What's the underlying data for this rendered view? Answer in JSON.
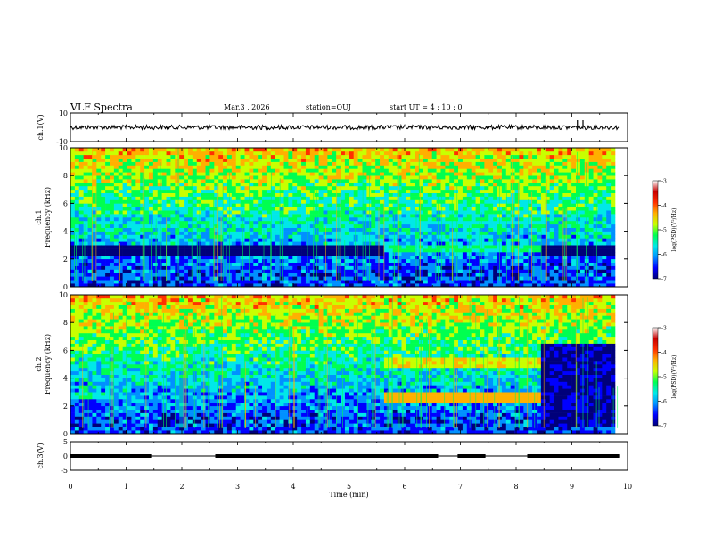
{
  "header": {
    "title": "VLF Spectra",
    "date": "Mar.3 , 2026",
    "station": "station=OUJ",
    "start_ut": "start UT = 4 : 10 : 0"
  },
  "colors": {
    "colormap": [
      "#00007a",
      "#0000ff",
      "#0090ff",
      "#00e8e8",
      "#00ff50",
      "#c8ff00",
      "#ffb000",
      "#ff3000",
      "#c80000",
      "#ffffff"
    ],
    "trace": "#000000",
    "axis": "#000000"
  },
  "chart_data": [
    {
      "type": "line",
      "panel": "ch1-waveform",
      "ylabel": "ch.1(V)",
      "ylim": [
        -10,
        10
      ],
      "yticks": [
        "10",
        "-10"
      ],
      "x": [
        0,
        1,
        2,
        3,
        4,
        5,
        5.15,
        6,
        7,
        8,
        9,
        9.1,
        9.2,
        9.85
      ],
      "y": [
        0,
        0,
        0,
        0,
        0,
        0,
        -2,
        0,
        0,
        0,
        0,
        5,
        5,
        0
      ]
    },
    {
      "type": "heatmap",
      "panel": "ch1-spectrogram",
      "ylabel": "ch.1 Frequency (kHz)",
      "ylim": [
        0,
        10
      ],
      "yticks": [
        "0",
        "2",
        "4",
        "6",
        "8",
        "10"
      ],
      "colorbar_label": "log(PSD)(V²/Hz)",
      "colorbar_ticks": [
        "-3",
        "-4",
        "-5",
        "-6",
        "-7"
      ],
      "zlim": [
        -7,
        -3
      ],
      "bands": [
        {
          "t0": 0,
          "t1": 5.65,
          "f0": 2.3,
          "f1": 2.9,
          "level": -6.8
        },
        {
          "t0": 5.65,
          "t1": 8.5,
          "f0": 2.4,
          "f1": 3.0,
          "level": -5.2
        },
        {
          "t0": 5.65,
          "t1": 8.5,
          "f0": 4.4,
          "f1": 4.8,
          "level": -5.4
        },
        {
          "t0": 8.5,
          "t1": 9.85,
          "f0": 2.3,
          "f1": 2.9,
          "level": -6.9
        }
      ]
    },
    {
      "type": "heatmap",
      "panel": "ch2-spectrogram",
      "ylabel": "ch.2 Frequency (kHz)",
      "ylim": [
        0,
        10
      ],
      "yticks": [
        "0",
        "2",
        "4",
        "6",
        "8",
        "10"
      ],
      "colorbar_label": "log(PSD)(V²/Hz)",
      "colorbar_ticks": [
        "-3",
        "-4",
        "-5",
        "-6",
        "-7"
      ],
      "zlim": [
        -7,
        -3
      ],
      "bands": [
        {
          "t0": 0,
          "t1": 0.7,
          "f0": 2.6,
          "f1": 3.1,
          "level": -5.3
        },
        {
          "t0": 5.65,
          "t1": 8.5,
          "f0": 2.3,
          "f1": 2.9,
          "level": -4.1
        },
        {
          "t0": 5.65,
          "t1": 8.5,
          "f0": 4.8,
          "f1": 5.4,
          "level": -4.4
        },
        {
          "t0": 8.5,
          "t1": 9.85,
          "f0": 0.5,
          "f1": 6.5,
          "level": -6.6
        }
      ]
    },
    {
      "type": "line",
      "panel": "ch3-waveform",
      "ylabel": "ch.3(V)",
      "xlabel": "Time (min)",
      "ylim": [
        -5,
        5
      ],
      "yticks": [
        "5",
        "0",
        "-5"
      ],
      "xlim": [
        0,
        10
      ],
      "xticks": [
        "0",
        "1",
        "2",
        "3",
        "4",
        "5",
        "6",
        "7",
        "8",
        "9",
        "10"
      ],
      "x": [
        0,
        9.85
      ],
      "y": [
        0,
        0
      ],
      "pulses_min": [
        [
          0,
          1.45
        ],
        [
          2.6,
          6.6
        ],
        [
          6.95,
          7.45
        ],
        [
          8.2,
          9.85
        ]
      ]
    }
  ]
}
